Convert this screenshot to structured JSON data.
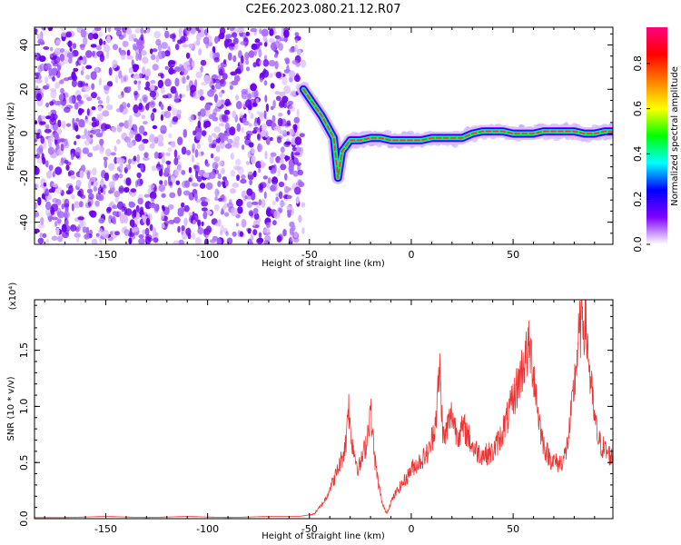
{
  "title": "C2E6.2023.080.21.12.R07",
  "chart_data": [
    {
      "type": "heatmap",
      "xlabel": "Height of straight line (km)",
      "ylabel": "Frequency (Hz)",
      "xlim": [
        -185,
        99
      ],
      "ylim": [
        -50,
        48
      ],
      "xticks": [
        -150,
        -100,
        -50,
        0,
        50
      ],
      "yticks": [
        -40,
        -20,
        0,
        20,
        40
      ],
      "colorbar": {
        "label": "Normalized spectral amplitude",
        "range": [
          0.0,
          0.96
        ],
        "ticks": [
          0.0,
          0.2,
          0.4,
          0.6,
          0.8
        ],
        "colors": [
          "#ffffff",
          "#7f00ff",
          "#0000ff",
          "#00ffff",
          "#00ff00",
          "#ffff00",
          "#ff8000",
          "#ff0000",
          "#ff007f"
        ]
      },
      "noise_region": {
        "x_range": [
          -185,
          -53
        ],
        "y_range": [
          -50,
          48
        ]
      },
      "ridge": {
        "x": [
          -53,
          -50,
          -47,
          -44,
          -41,
          -38,
          -36,
          -34,
          -30,
          -25,
          -20,
          -15,
          -10,
          -5,
          0,
          5,
          10,
          15,
          20,
          25,
          30,
          35,
          40,
          45,
          50,
          55,
          60,
          65,
          70,
          75,
          80,
          85,
          90,
          95,
          99
        ],
        "y": [
          20,
          16,
          12,
          8,
          3,
          -2,
          -20,
          -8,
          -3,
          -3,
          -2,
          -2,
          -3,
          -3,
          -3,
          -3,
          -2,
          -2,
          -2,
          -2,
          0,
          1,
          1,
          1,
          0,
          0,
          0,
          1,
          1,
          1,
          1,
          0,
          0,
          1,
          1
        ]
      }
    },
    {
      "type": "line",
      "xlabel": "Height of straight line (km)",
      "ylabel": "SNR (10 * v/v)",
      "multiplier": "(x10⁴)",
      "xlim": [
        -185,
        99
      ],
      "ylim": [
        0.0,
        1.95
      ],
      "xticks": [
        -150,
        -100,
        -50,
        0,
        50
      ],
      "yticks": [
        0.0,
        0.5,
        1.0,
        1.5
      ],
      "color": "#ee3333",
      "series": [
        {
          "x": [
            -185,
            -170,
            -150,
            -130,
            -110,
            -90,
            -70,
            -55,
            -48,
            -45,
            -42,
            -40,
            -38,
            -36,
            -34,
            -32,
            -31,
            -30,
            -28,
            -26,
            -24,
            -22,
            -20,
            -18,
            -16,
            -14,
            -12,
            -10,
            -8,
            -5,
            -2,
            0,
            3,
            6,
            9,
            12,
            14,
            15,
            16,
            18,
            20,
            22,
            24,
            26,
            28,
            30,
            33,
            36,
            40,
            44,
            48,
            52,
            55,
            58,
            60,
            62,
            64,
            66,
            68,
            70,
            72,
            74,
            76,
            78,
            80,
            82,
            84,
            86,
            88,
            90,
            92,
            94,
            96,
            99
          ],
          "y": [
            0.01,
            0.01,
            0.02,
            0.01,
            0.02,
            0.01,
            0.02,
            0.02,
            0.04,
            0.1,
            0.18,
            0.28,
            0.35,
            0.45,
            0.55,
            0.7,
            1.1,
            0.8,
            0.6,
            0.45,
            0.55,
            0.7,
            1.0,
            0.55,
            0.3,
            0.12,
            0.05,
            0.15,
            0.22,
            0.3,
            0.38,
            0.45,
            0.5,
            0.55,
            0.62,
            0.9,
            1.35,
            0.95,
            0.7,
            0.85,
            0.95,
            0.8,
            0.78,
            0.82,
            0.75,
            0.65,
            0.6,
            0.58,
            0.6,
            0.75,
            0.95,
            1.2,
            1.4,
            1.55,
            1.35,
            1.0,
            0.75,
            0.62,
            0.55,
            0.52,
            0.5,
            0.52,
            0.6,
            0.85,
            1.2,
            1.6,
            1.85,
            1.7,
            1.25,
            0.9,
            0.7,
            0.65,
            0.6,
            0.55
          ]
        }
      ]
    }
  ]
}
